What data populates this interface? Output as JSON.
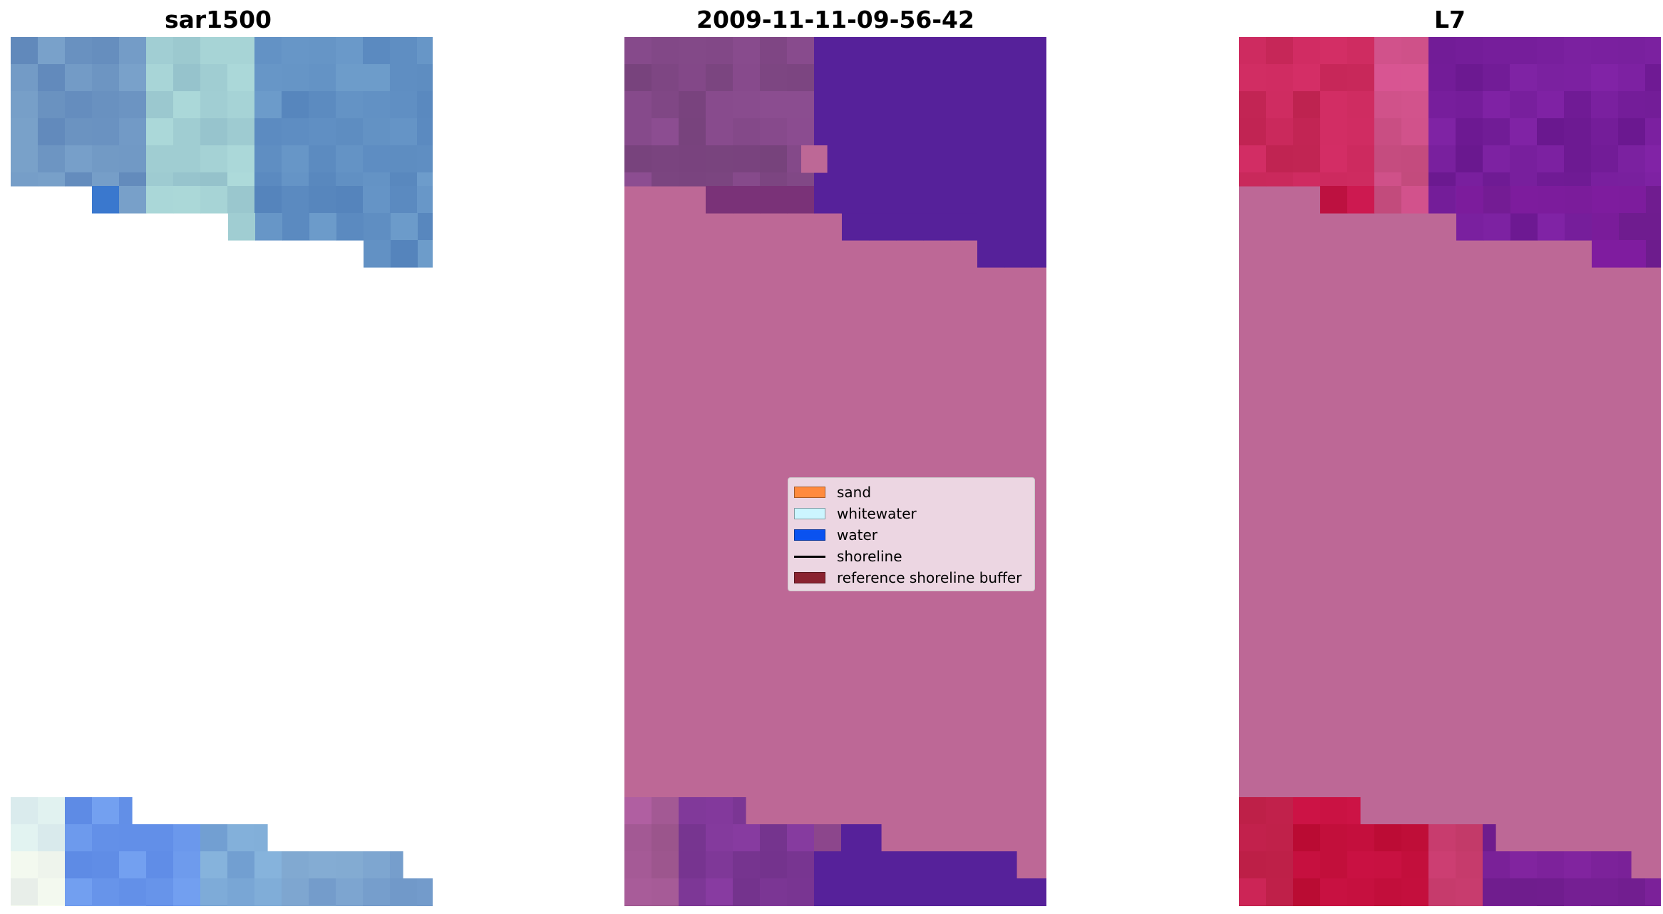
{
  "panels": [
    {
      "id": "rgb",
      "title": "sar1500"
    },
    {
      "id": "classified",
      "title": "2009-11-11-09-56-42"
    },
    {
      "id": "index",
      "title": "L7"
    }
  ],
  "legend": {
    "items": [
      {
        "label": "sand",
        "color": "#ff8a3d",
        "kind": "patch"
      },
      {
        "label": "whitewater",
        "color": "#ccf5ff",
        "kind": "patch"
      },
      {
        "label": "water",
        "color": "#0a52f0",
        "kind": "patch"
      },
      {
        "label": "shoreline",
        "color": "#000000",
        "kind": "line"
      },
      {
        "label": "reference shoreline buffer",
        "color": "#8a2230",
        "kind": "patch"
      }
    ]
  },
  "colors": {
    "background": "#ffffff",
    "buffer_overlay": "#bd6896",
    "water_purple": "#56219a",
    "index_red": "#c51640",
    "index_purple": "#7a1fa0",
    "rgb_blue": "#5f8fc0",
    "rgb_light": "#a7cfd0"
  }
}
